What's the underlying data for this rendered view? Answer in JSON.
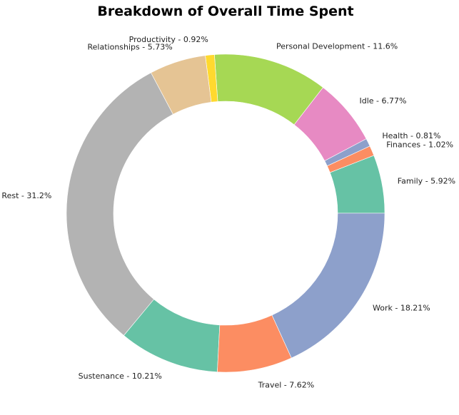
{
  "chart_data": {
    "type": "pie",
    "variant": "donut",
    "title": "Breakdown of Overall Time Spent",
    "start_angle_deg": 0,
    "direction": "counterclockwise",
    "slices": [
      {
        "label": "Family - 5.92%",
        "value": 5.92,
        "color": "#66c2a5"
      },
      {
        "label": "Finances - 1.02%",
        "value": 1.02,
        "color": "#fc8d62"
      },
      {
        "label": "Health - 0.81%",
        "value": 0.81,
        "color": "#8da0cb"
      },
      {
        "label": "Idle - 6.77%",
        "value": 6.77,
        "color": "#e78ac3"
      },
      {
        "label": "Personal Development - 11.6%",
        "value": 11.6,
        "color": "#a6d854"
      },
      {
        "label": "Productivity - 0.92%",
        "value": 0.92,
        "color": "#ffd92f"
      },
      {
        "label": "Relationships - 5.73%",
        "value": 5.73,
        "color": "#e5c494"
      },
      {
        "label": "Rest - 31.2%",
        "value": 31.2,
        "color": "#b3b3b3"
      },
      {
        "label": "Sustenance - 10.21%",
        "value": 10.21,
        "color": "#66c2a5"
      },
      {
        "label": "Travel - 7.62%",
        "value": 7.62,
        "color": "#fc8d62"
      },
      {
        "label": "Work - 18.21%",
        "value": 18.21,
        "color": "#8da0cb"
      }
    ]
  }
}
